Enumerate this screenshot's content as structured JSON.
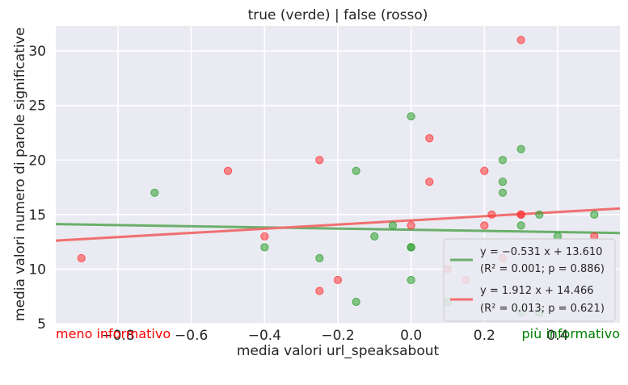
{
  "chart_data": {
    "type": "scatter",
    "title": "true (verde) | false (rosso)",
    "xlabel": "media valori url_speaksabout",
    "ylabel": "media valori numero di parole significative",
    "xlim": [
      -0.97,
      0.57
    ],
    "ylim": [
      5,
      32.3
    ],
    "xticks": [
      -0.8,
      -0.6,
      -0.4,
      -0.2,
      0.0,
      0.2,
      0.4
    ],
    "xtick_labels": [
      "−0.8",
      "−0.6",
      "−0.4",
      "−0.2",
      "0.0",
      "0.2",
      "0.4"
    ],
    "yticks": [
      5,
      10,
      15,
      20,
      25,
      30
    ],
    "ytick_labels": [
      "5",
      "10",
      "15",
      "20",
      "25",
      "30"
    ],
    "grid": true,
    "legend_position": "lower-right",
    "series": [
      {
        "color": "#2ca02c",
        "points": [
          [
            -0.7,
            17
          ],
          [
            -0.4,
            12
          ],
          [
            -0.25,
            11
          ],
          [
            -0.15,
            19
          ],
          [
            -0.15,
            7
          ],
          [
            -0.1,
            13
          ],
          [
            -0.05,
            14
          ],
          [
            0.0,
            24
          ],
          [
            0.0,
            12
          ],
          [
            0.0,
            12
          ],
          [
            0.0,
            9
          ],
          [
            0.1,
            7
          ],
          [
            0.25,
            20
          ],
          [
            0.25,
            18
          ],
          [
            0.25,
            17
          ],
          [
            0.3,
            21
          ],
          [
            0.3,
            14
          ],
          [
            0.3,
            6
          ],
          [
            0.35,
            15
          ],
          [
            0.35,
            6
          ],
          [
            0.4,
            13
          ],
          [
            0.5,
            15
          ]
        ],
        "fit": {
          "slope": -0.531,
          "intercept": 13.61
        }
      },
      {
        "color": "#ff3333",
        "points": [
          [
            -0.9,
            11
          ],
          [
            -0.5,
            19
          ],
          [
            -0.4,
            13
          ],
          [
            -0.25,
            20
          ],
          [
            -0.25,
            8
          ],
          [
            -0.2,
            9
          ],
          [
            0.0,
            14
          ],
          [
            0.05,
            22
          ],
          [
            0.05,
            18
          ],
          [
            0.1,
            10
          ],
          [
            0.15,
            9
          ],
          [
            0.2,
            19
          ],
          [
            0.2,
            14
          ],
          [
            0.22,
            15
          ],
          [
            0.25,
            11
          ],
          [
            0.3,
            31
          ],
          [
            0.3,
            15
          ],
          [
            0.3,
            15
          ],
          [
            0.5,
            13
          ]
        ],
        "fit": {
          "slope": 1.912,
          "intercept": 14.466
        }
      }
    ],
    "legend": [
      {
        "line1": "y = −0.531 x + 13.610",
        "line2": "(R² = 0.001; p = 0.886)",
        "color": "#6aaf6a"
      },
      {
        "line1": "y = 1.912 x + 14.466",
        "line2": "(R² = 0.013; p = 0.621)",
        "color": "#f07070"
      }
    ],
    "annotations": {
      "left": {
        "text": "meno informativo",
        "color": "#ff0000"
      },
      "right": {
        "text": "più informativo",
        "color": "#008000"
      }
    }
  }
}
